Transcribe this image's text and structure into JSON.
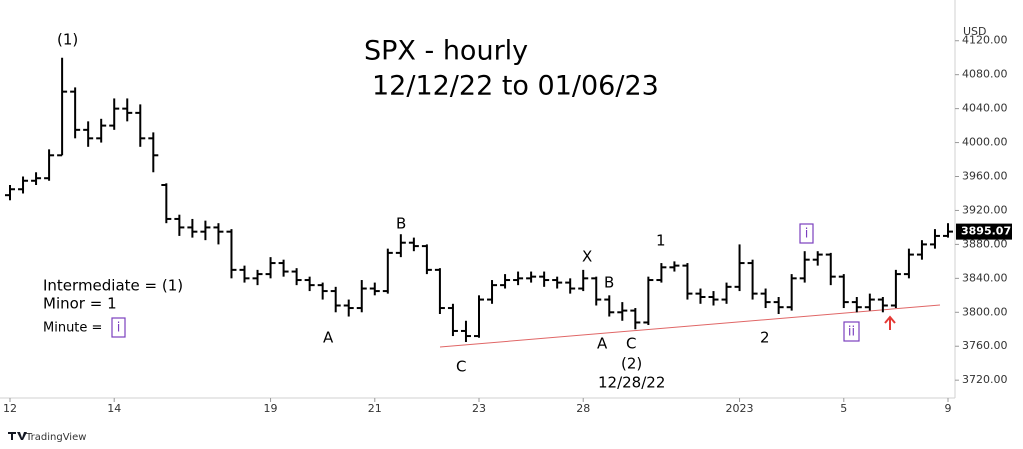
{
  "chart_data": {
    "type": "ohlc",
    "title": "SPX - hourly",
    "subtitle": "12/12/22 to 01/06/23",
    "currency": "USD",
    "brand": "TradingView",
    "color": "#000000",
    "categories": [
      "12",
      null,
      null,
      null,
      null,
      null,
      null,
      null,
      "14",
      null,
      null,
      null,
      null,
      null,
      null,
      null,
      null,
      null,
      null,
      null,
      "19",
      null,
      null,
      null,
      null,
      null,
      null,
      null,
      "21",
      null,
      null,
      null,
      null,
      null,
      null,
      null,
      "23",
      null,
      null,
      null,
      null,
      null,
      null,
      null,
      "28",
      null,
      null,
      null,
      null,
      null,
      null,
      null,
      null,
      null,
      null,
      null,
      "2023",
      null,
      null,
      null,
      null,
      null,
      null,
      null,
      "5",
      null,
      null,
      null,
      null,
      null,
      null,
      null,
      "9"
    ],
    "open": [
      3938,
      3945,
      3955,
      3958,
      3985,
      4060,
      4015,
      4005,
      4020,
      4040,
      4035,
      4005,
      3950,
      3910,
      3900,
      3895,
      3900,
      3895,
      3850,
      3840,
      3845,
      3858,
      3848,
      3838,
      3832,
      3825,
      3808,
      3805,
      3828,
      3825,
      3870,
      3882,
      3878,
      3850,
      3805,
      3778,
      3772,
      3815,
      3832,
      3838,
      3840,
      3842,
      3838,
      3835,
      3828,
      3840,
      3815,
      3800,
      3802,
      3788,
      3838,
      3853,
      3855,
      3822,
      3818,
      3815,
      3830,
      3858,
      3822,
      3812,
      3806,
      3840,
      3862,
      3868,
      3842,
      3812,
      3806,
      3815,
      3808,
      3845,
      3868,
      3880,
      3890
    ],
    "high": [
      3950,
      3960,
      3965,
      3992,
      4100,
      4065,
      4025,
      4028,
      4052,
      4052,
      4045,
      4012,
      3952,
      3915,
      3910,
      3908,
      3905,
      3898,
      3855,
      3850,
      3865,
      3862,
      3852,
      3842,
      3835,
      3830,
      3815,
      3838,
      3835,
      3875,
      3892,
      3888,
      3880,
      3852,
      3810,
      3790,
      3820,
      3838,
      3845,
      3848,
      3848,
      3848,
      3842,
      3840,
      3850,
      3842,
      3820,
      3812,
      3805,
      3842,
      3858,
      3860,
      3858,
      3828,
      3825,
      3835,
      3880,
      3862,
      3828,
      3818,
      3845,
      3872,
      3872,
      3870,
      3845,
      3818,
      3822,
      3818,
      3850,
      3875,
      3885,
      3898,
      3905
    ],
    "low": [
      3932,
      3940,
      3950,
      3955,
      3985,
      4005,
      3995,
      4000,
      4015,
      4025,
      3995,
      3965,
      3905,
      3890,
      3888,
      3885,
      3880,
      3840,
      3835,
      3832,
      3840,
      3842,
      3832,
      3825,
      3815,
      3800,
      3795,
      3800,
      3820,
      3822,
      3865,
      3872,
      3845,
      3798,
      3772,
      3765,
      3770,
      3810,
      3828,
      3832,
      3835,
      3830,
      3828,
      3822,
      3825,
      3808,
      3795,
      3790,
      3780,
      3785,
      3835,
      3848,
      3815,
      3810,
      3808,
      3810,
      3825,
      3815,
      3805,
      3798,
      3802,
      3835,
      3855,
      3832,
      3805,
      3800,
      3802,
      3800,
      3805,
      3840,
      3862,
      3875,
      3888
    ],
    "close": [
      3945,
      3955,
      3958,
      3985,
      4060,
      4015,
      4005,
      4020,
      4040,
      4035,
      4005,
      3985,
      3910,
      3900,
      3895,
      3900,
      3895,
      3850,
      3840,
      3845,
      3858,
      3848,
      3838,
      3832,
      3825,
      3808,
      3805,
      3828,
      3825,
      3870,
      3882,
      3878,
      3850,
      3805,
      3778,
      3772,
      3815,
      3832,
      3838,
      3840,
      3842,
      3838,
      3835,
      3828,
      3840,
      3815,
      3800,
      3802,
      3788,
      3838,
      3853,
      3855,
      3822,
      3818,
      3815,
      3830,
      3858,
      3822,
      3812,
      3806,
      3840,
      3862,
      3868,
      3842,
      3812,
      3806,
      3815,
      3808,
      3845,
      3868,
      3880,
      3890,
      3895.07
    ],
    "last_price": 3895.07,
    "ylim": [
      3699,
      4168
    ],
    "yticks": [
      {
        "value": 3720,
        "label": "3720.00"
      },
      {
        "value": 3760,
        "label": "3760.00"
      },
      {
        "value": 3800,
        "label": "3800.00"
      },
      {
        "value": 3840,
        "label": "3840.00"
      },
      {
        "value": 3880,
        "label": "3880.00"
      },
      {
        "value": 3920,
        "label": "3920.00"
      },
      {
        "value": 3960,
        "label": "3960.00"
      },
      {
        "value": 4000,
        "label": "4000.00"
      },
      {
        "value": 4040,
        "label": "4040.00"
      },
      {
        "value": 4080,
        "label": "4080.00"
      },
      {
        "value": 4120,
        "label": "4120.00"
      }
    ],
    "annotations": [
      "(1)",
      "B",
      "A",
      "C",
      "X",
      "B",
      "A",
      "C",
      "(2)",
      "12/28/22",
      "1",
      "2",
      "i",
      "ii",
      "i",
      "Intermediate = (1)",
      "Minor = 1",
      "Minute ="
    ]
  }
}
